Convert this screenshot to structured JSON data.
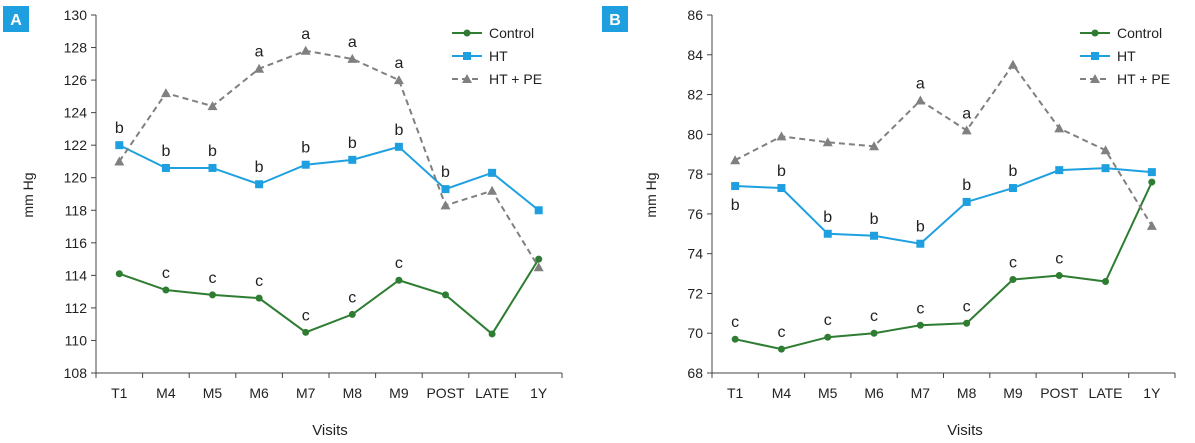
{
  "colors": {
    "control": "#2e7d32",
    "ht": "#1ea0e0",
    "htpe": "#808080",
    "panel_badge": "#1ea0e0",
    "axis": "#444444"
  },
  "chart_data": [
    {
      "type": "line",
      "panel_label": "A",
      "xlabel": "Visits",
      "ylabel": "mm Hg",
      "categories": [
        "T1",
        "M4",
        "M5",
        "M6",
        "M7",
        "M8",
        "M9",
        "POST",
        "LATE",
        "1Y"
      ],
      "ylim": [
        108,
        130
      ],
      "yticks": [
        "108",
        "110",
        "112",
        "114",
        "116",
        "118",
        "120",
        "122",
        "124",
        "126",
        "128",
        "130"
      ],
      "legend_position": "top-right",
      "series": [
        {
          "name": "Control",
          "key": "control",
          "marker": "circle",
          "dashed": false,
          "values": [
            114.1,
            113.1,
            112.8,
            112.6,
            110.5,
            111.6,
            113.7,
            112.8,
            110.4,
            115.0
          ],
          "labels": [
            "",
            "c",
            "c",
            "c",
            "c",
            "c",
            "c",
            "",
            "",
            ""
          ],
          "label_side": [
            "",
            "above",
            "above",
            "above",
            "above",
            "above",
            "above",
            "",
            "",
            ""
          ]
        },
        {
          "name": "HT",
          "key": "ht",
          "marker": "square",
          "dashed": false,
          "values": [
            122.0,
            120.6,
            120.6,
            119.6,
            120.8,
            121.1,
            121.9,
            119.3,
            120.3,
            118.0
          ],
          "labels": [
            "b",
            "b",
            "b",
            "b",
            "b",
            "b",
            "b",
            "b",
            "",
            ""
          ],
          "label_side": [
            "above",
            "above",
            "above",
            "above",
            "above",
            "above",
            "above",
            "above",
            "",
            ""
          ]
        },
        {
          "name": "HT + PE",
          "key": "htpe",
          "marker": "triangle",
          "dashed": true,
          "values": [
            121.0,
            125.2,
            124.4,
            126.7,
            127.8,
            127.3,
            126.0,
            118.3,
            119.2,
            114.5
          ],
          "labels": [
            "",
            "",
            "",
            "a",
            "a",
            "a",
            "a",
            "",
            "",
            ""
          ],
          "label_side": [
            "",
            "",
            "",
            "above",
            "above",
            "above",
            "above",
            "",
            "",
            ""
          ]
        }
      ]
    },
    {
      "type": "line",
      "panel_label": "B",
      "xlabel": "Visits",
      "ylabel": "mm Hg",
      "categories": [
        "T1",
        "M4",
        "M5",
        "M6",
        "M7",
        "M8",
        "M9",
        "POST",
        "LATE",
        "1Y"
      ],
      "ylim": [
        68,
        86
      ],
      "yticks": [
        "68",
        "70",
        "72",
        "74",
        "76",
        "78",
        "80",
        "82",
        "84",
        "86"
      ],
      "legend_position": "top-right",
      "series": [
        {
          "name": "Control",
          "key": "control",
          "marker": "circle",
          "dashed": false,
          "values": [
            69.7,
            69.2,
            69.8,
            70.0,
            70.4,
            70.5,
            72.7,
            72.9,
            72.6,
            77.6
          ],
          "labels": [
            "c",
            "c",
            "c",
            "c",
            "c",
            "c",
            "c",
            "c",
            "",
            ""
          ],
          "label_side": [
            "above",
            "above",
            "above",
            "above",
            "above",
            "above",
            "above",
            "above",
            "",
            ""
          ]
        },
        {
          "name": "HT",
          "key": "ht",
          "marker": "square",
          "dashed": false,
          "values": [
            77.4,
            77.3,
            75.0,
            74.9,
            74.5,
            76.6,
            77.3,
            78.2,
            78.3,
            78.1
          ],
          "labels": [
            "b",
            "b",
            "b",
            "b",
            "b",
            "b",
            "b",
            "",
            "",
            ""
          ],
          "label_side": [
            "below",
            "above",
            "above",
            "above",
            "above",
            "above",
            "above",
            "",
            "",
            ""
          ]
        },
        {
          "name": "HT + PE",
          "key": "htpe",
          "marker": "triangle",
          "dashed": true,
          "values": [
            78.7,
            79.9,
            79.6,
            79.4,
            81.7,
            80.2,
            83.5,
            80.3,
            79.2,
            75.4
          ],
          "labels": [
            "",
            "",
            "",
            "",
            "a",
            "a",
            "",
            "",
            "",
            ""
          ],
          "label_side": [
            "",
            "",
            "",
            "",
            "above",
            "above",
            "",
            "",
            "",
            ""
          ]
        }
      ]
    }
  ]
}
